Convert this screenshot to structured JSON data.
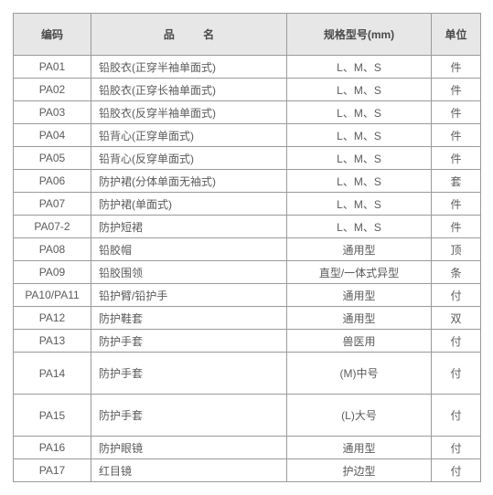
{
  "table": {
    "header": {
      "code": "编码",
      "name": "品 名",
      "spec": "规格型号(mm)",
      "unit": "单位"
    },
    "colors": {
      "header_bg": "#e7e7e7",
      "border": "#9a9a9a",
      "text": "#5b5b5b",
      "header_text": "#4a4a4a",
      "background": "#ffffff"
    },
    "fontsize": 12,
    "columns": {
      "code_width": 85,
      "name_width": 214,
      "spec_width": 158,
      "unit_width": 54
    },
    "rows": [
      {
        "code": "PA01",
        "name": "铅胶衣(正穿半袖单面式)",
        "spec": "L、M、S",
        "unit": "件",
        "tall": false
      },
      {
        "code": "PA02",
        "name": "铅胶衣(正穿长袖单面式)",
        "spec": "L、M、S",
        "unit": "件",
        "tall": false
      },
      {
        "code": "PA03",
        "name": "铅胶衣(反穿半袖单面式)",
        "spec": "L、M、S",
        "unit": "件",
        "tall": false
      },
      {
        "code": "PA04",
        "name": "铅背心(正穿单面式)",
        "spec": "L、M、S",
        "unit": "件",
        "tall": false
      },
      {
        "code": "PA05",
        "name": "铅背心(反穿单面式)",
        "spec": "L、M、S",
        "unit": "件",
        "tall": false
      },
      {
        "code": "PA06",
        "name": "防护裙(分体单面无袖式)",
        "spec": "L、M、S",
        "unit": "套",
        "tall": false
      },
      {
        "code": "PA07",
        "name": "防护裙(单面式)",
        "spec": "L、M、S",
        "unit": "件",
        "tall": false
      },
      {
        "code": "PA07-2",
        "name": "防护短裙",
        "spec": "L、M、S",
        "unit": "件",
        "tall": false
      },
      {
        "code": "PA08",
        "name": "铅胶帽",
        "spec": "通用型",
        "unit": "顶",
        "tall": false
      },
      {
        "code": "PA09",
        "name": "铅胶围领",
        "spec": "直型/一体式异型",
        "unit": "条",
        "tall": false
      },
      {
        "code": "PA10/PA11",
        "name": "铅护臂/铅护手",
        "spec": "通用型",
        "unit": "付",
        "tall": false
      },
      {
        "code": "PA12",
        "name": "防护鞋套",
        "spec": "通用型",
        "unit": "双",
        "tall": false
      },
      {
        "code": "PA13",
        "name": "防护手套",
        "spec": "兽医用",
        "unit": "付",
        "tall": false
      },
      {
        "code": "PA14",
        "name": "防护手套",
        "spec": "(M)中号",
        "unit": "付",
        "tall": true
      },
      {
        "code": "PA15",
        "name": "防护手套",
        "spec": "(L)大号",
        "unit": "付",
        "tall": true
      },
      {
        "code": "PA16",
        "name": "防护眼镜",
        "spec": "通用型",
        "unit": "付",
        "tall": false
      },
      {
        "code": "PA17",
        "name": "红目镜",
        "spec": "护边型",
        "unit": "付",
        "tall": false
      }
    ]
  }
}
